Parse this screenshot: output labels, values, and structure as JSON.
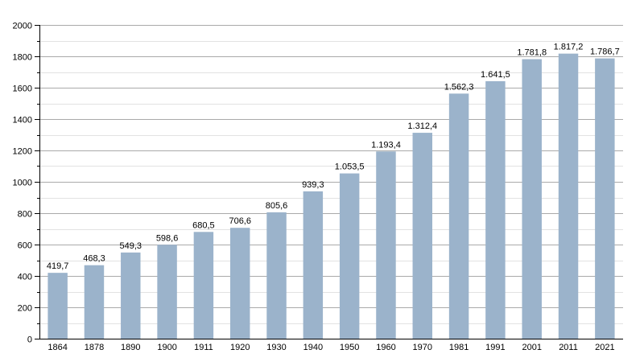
{
  "chart_data": {
    "type": "bar",
    "title": "",
    "xlabel": "",
    "ylabel": "",
    "ylim": [
      0,
      2000
    ],
    "yticks": [
      0,
      200,
      400,
      600,
      800,
      1000,
      1200,
      1400,
      1600,
      1800,
      2000
    ],
    "grid": true,
    "minor_grid_step": 100,
    "categories": [
      "1864",
      "1878",
      "1890",
      "1900",
      "1911",
      "1920",
      "1930",
      "1940",
      "1950",
      "1960",
      "1970",
      "1981",
      "1991",
      "2001",
      "2011",
      "2021"
    ],
    "values": [
      419.7,
      468.3,
      549.3,
      598.6,
      680.5,
      706.6,
      805.6,
      939.3,
      1053.5,
      1193.4,
      1312.4,
      1562.3,
      1641.5,
      1781.8,
      1817.2,
      1786.7
    ],
    "value_labels": [
      "419,7",
      "468,3",
      "549,3",
      "598,6",
      "680,5",
      "706,6",
      "805,6",
      "939,3",
      "1.053,5",
      "1.193,4",
      "1.312,4",
      "1.562,3",
      "1.641,5",
      "1.781,8",
      "1.817,2",
      "1.786,7"
    ],
    "colors": {
      "bar": "#9bb3cb",
      "major_grid": "#aaaaaa",
      "minor_grid": "#e2e2e2",
      "axis": "#000000"
    }
  }
}
